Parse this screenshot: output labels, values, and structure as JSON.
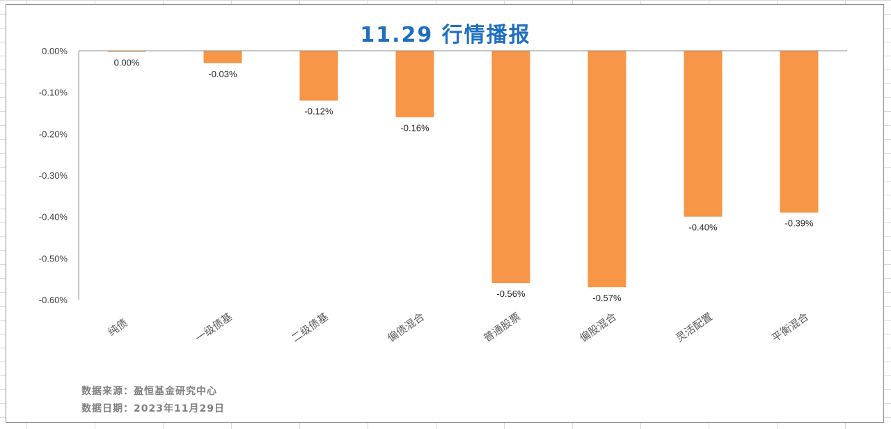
{
  "chart_data": {
    "type": "bar",
    "title": "11.29 行情播报",
    "categories": [
      "纯债",
      "一级债基",
      "二级债基",
      "偏债混合",
      "普通股票",
      "偏股混合",
      "灵活配置",
      "平衡混合"
    ],
    "values": [
      0.0,
      -0.03,
      -0.12,
      -0.16,
      -0.56,
      -0.57,
      -0.4,
      -0.39
    ],
    "value_labels": [
      "0.00%",
      "-0.03%",
      "-0.12%",
      "-0.16%",
      "-0.56%",
      "-0.57%",
      "-0.40%",
      "-0.39%"
    ],
    "yticks": [
      "0.00%",
      "-0.10%",
      "-0.20%",
      "-0.30%",
      "-0.40%",
      "-0.50%",
      "-0.60%"
    ],
    "ytick_values": [
      0,
      -0.1,
      -0.2,
      -0.3,
      -0.4,
      -0.5,
      -0.6
    ],
    "ylim": [
      -0.6,
      0
    ],
    "y_unit": "%",
    "grid": false,
    "bar_color": "#f79646"
  },
  "footnotes": {
    "source": "数据来源：盈恒基金研究中心",
    "date": "数据日期：2023年11月29日"
  }
}
